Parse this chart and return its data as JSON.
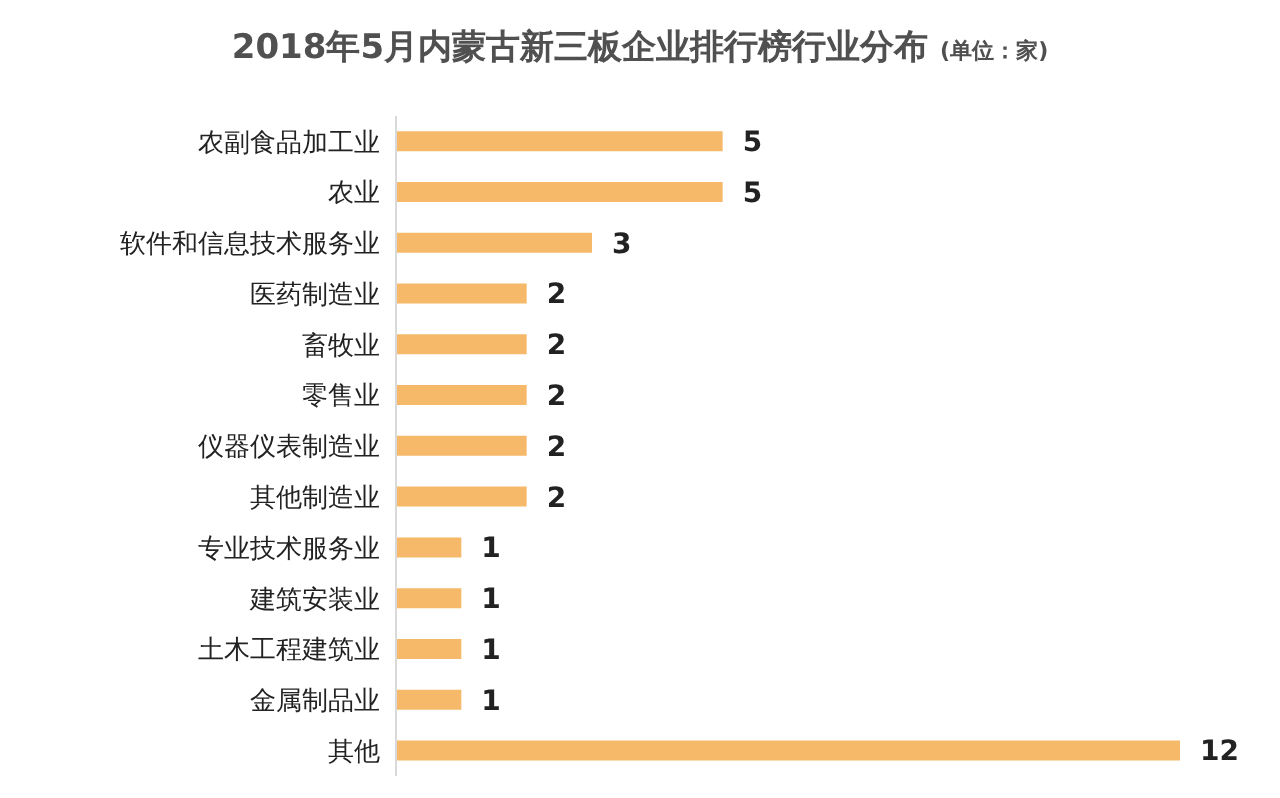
{
  "chart_data": {
    "type": "bar",
    "orientation": "horizontal",
    "title": "2018年5月内蒙古新三板企业排行榜行业分布",
    "subtitle": "(单位：家)",
    "categories": [
      "农副食品加工业",
      "农业",
      "软件和信息技术服务业",
      "医药制造业",
      "畜牧业",
      "零售业",
      "仪器仪表制造业",
      "其他制造业",
      "专业技术服务业",
      "建筑安装业",
      "土木工程建筑业",
      "金属制品业",
      "其他"
    ],
    "values": [
      5,
      5,
      3,
      2,
      2,
      2,
      2,
      2,
      1,
      1,
      1,
      1,
      12
    ],
    "color": "#f5b969",
    "data_labels": true,
    "grid": false,
    "legend": false
  }
}
